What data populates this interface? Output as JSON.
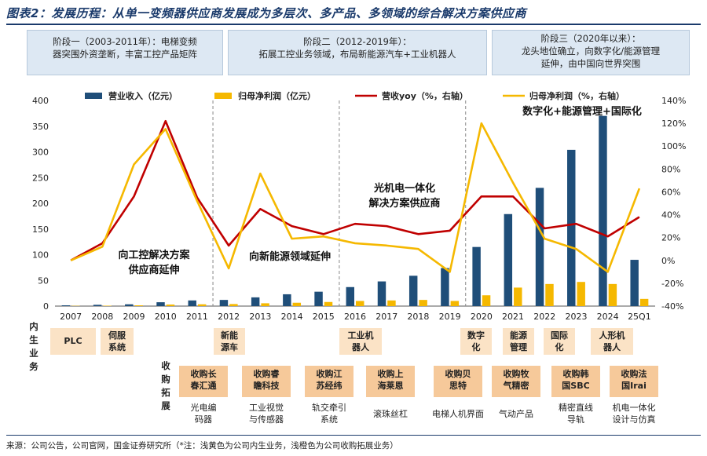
{
  "title": "图表2：发展历程：从单一变频器供应商发展成为多层次、多产品、多领域的综合解决方案供应商",
  "stages": [
    {
      "line1": "阶段一（2003-2011年）：电梯变频",
      "line2": "器突围外资垄断，丰富工控产品矩阵"
    },
    {
      "line1": "阶段二（2012-2019年）：",
      "line2": "拓展工控业务领域，布局新能源汽车+工业机器人"
    },
    {
      "line1": "阶段三（2020年以来）：",
      "line2": "龙头地位确立，向数字化/能源管理",
      "line3": "延伸，由中国向世界突围"
    }
  ],
  "chart_data": {
    "type": "bar",
    "categories": [
      "2007",
      "2008",
      "2009",
      "2010",
      "2011",
      "2012",
      "2013",
      "2014",
      "2015",
      "2016",
      "2017",
      "2018",
      "2019",
      "2020",
      "2021",
      "2022",
      "2023",
      "2024",
      "25Q1"
    ],
    "series": [
      {
        "name": "营业收入（亿元）",
        "type": "bar",
        "axis": "left",
        "color": "#1f4e79",
        "values": [
          1.5,
          2.5,
          3.5,
          7.5,
          11,
          12,
          17,
          23,
          28,
          37,
          48,
          59,
          74,
          115,
          179,
          230,
          304,
          370,
          90
        ]
      },
      {
        "name": "归母净利润（亿元）",
        "type": "bar",
        "axis": "left",
        "color": "#f5b800",
        "values": [
          0.5,
          0.8,
          1.5,
          3,
          3.5,
          4,
          5.5,
          6.5,
          8,
          10,
          11,
          12,
          10,
          21,
          36,
          43,
          47,
          43,
          14
        ]
      },
      {
        "name": "营收yoy（%，右轴）",
        "type": "line",
        "axis": "right",
        "color": "#c00000",
        "values": [
          0,
          15,
          56,
          122,
          55,
          13,
          45,
          30,
          23,
          32,
          30,
          23,
          26,
          56,
          56,
          28,
          32,
          21,
          38
        ]
      },
      {
        "name": "归母净利润（%，右轴）",
        "type": "line",
        "axis": "right",
        "color": "#f5b800",
        "values": [
          0,
          12,
          84,
          115,
          52,
          -7,
          76,
          19,
          21,
          15,
          13,
          10,
          -10,
          120,
          68,
          19,
          10,
          -10,
          63
        ]
      }
    ],
    "ylim_left": [
      0,
      400
    ],
    "yticks_left": [
      "0",
      "50",
      "100",
      "150",
      "200",
      "250",
      "300",
      "350",
      "400"
    ],
    "ylim_right": [
      -40,
      140
    ],
    "yticks_right": [
      "-40%",
      "-20%",
      "0%",
      "20%",
      "40%",
      "60%",
      "80%",
      "100%",
      "120%",
      "140%"
    ],
    "annotations": [
      "向工控解决方案",
      "供应商延伸",
      "向新能源领域延伸",
      "光机电一体化",
      "解决方案供应商",
      "数字化+能源管理+国际化"
    ]
  },
  "row_labels": {
    "inner": "内生业务",
    "acquire": "收购拓展"
  },
  "inner_tags": [
    {
      "text": "PLC"
    },
    {
      "text": "伺服系统"
    },
    {
      "text": "新能源车"
    },
    {
      "text": "工业机器人"
    },
    {
      "text": "数字化"
    },
    {
      "text": "能源管理"
    },
    {
      "text": "国际化"
    },
    {
      "text": "人形机器人"
    }
  ],
  "acquisitions": [
    {
      "name": "收购长春汇通",
      "desc": "光电编码器"
    },
    {
      "name": "收购睿瞻科技",
      "desc": "工业视觉与传感器"
    },
    {
      "name": "收购江苏经纬",
      "desc": "轨交牵引系统"
    },
    {
      "name": "收购上海莱恩",
      "desc": "滚珠丝杠"
    },
    {
      "name": "收购贝思特",
      "desc": "电梯人机界面"
    },
    {
      "name": "收购牧气精密",
      "desc": "气动产品"
    },
    {
      "name": "收购韩国SBC",
      "desc": "精密直线导轨"
    },
    {
      "name": "收购法国Irai",
      "desc": "机电一体化设计与仿真"
    }
  ],
  "source": "来源：公司公告，公司官网，国金证券研究所（*注：浅黄色为公司内生业务，浅橙色为公司收购拓展业务）"
}
